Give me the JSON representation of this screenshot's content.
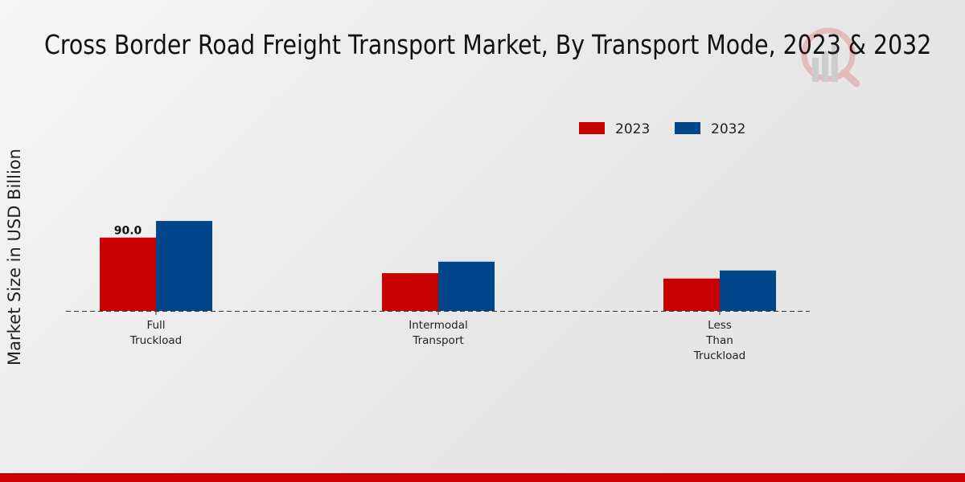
{
  "chart_data": {
    "type": "bar",
    "title": "Cross Border Road Freight Transport Market, By Transport Mode, 2023 & 2032",
    "xlabel": "",
    "ylabel": "Market Size in USD Billion",
    "categories": [
      [
        "Full",
        "Truckload"
      ],
      [
        "Intermodal",
        "Transport"
      ],
      [
        "Less",
        "Than",
        "Truckload"
      ]
    ],
    "series": [
      {
        "name": "2023",
        "color": "#c80000",
        "values": [
          90.0,
          46.3,
          39.7
        ]
      },
      {
        "name": "2032",
        "color": "#00468a",
        "values": [
          110.4,
          60.4,
          49.6
        ]
      }
    ],
    "data_labels": [
      {
        "series": 0,
        "index": 0,
        "text": "90.0"
      }
    ],
    "legend_position": "top-right",
    "grid": false
  }
}
